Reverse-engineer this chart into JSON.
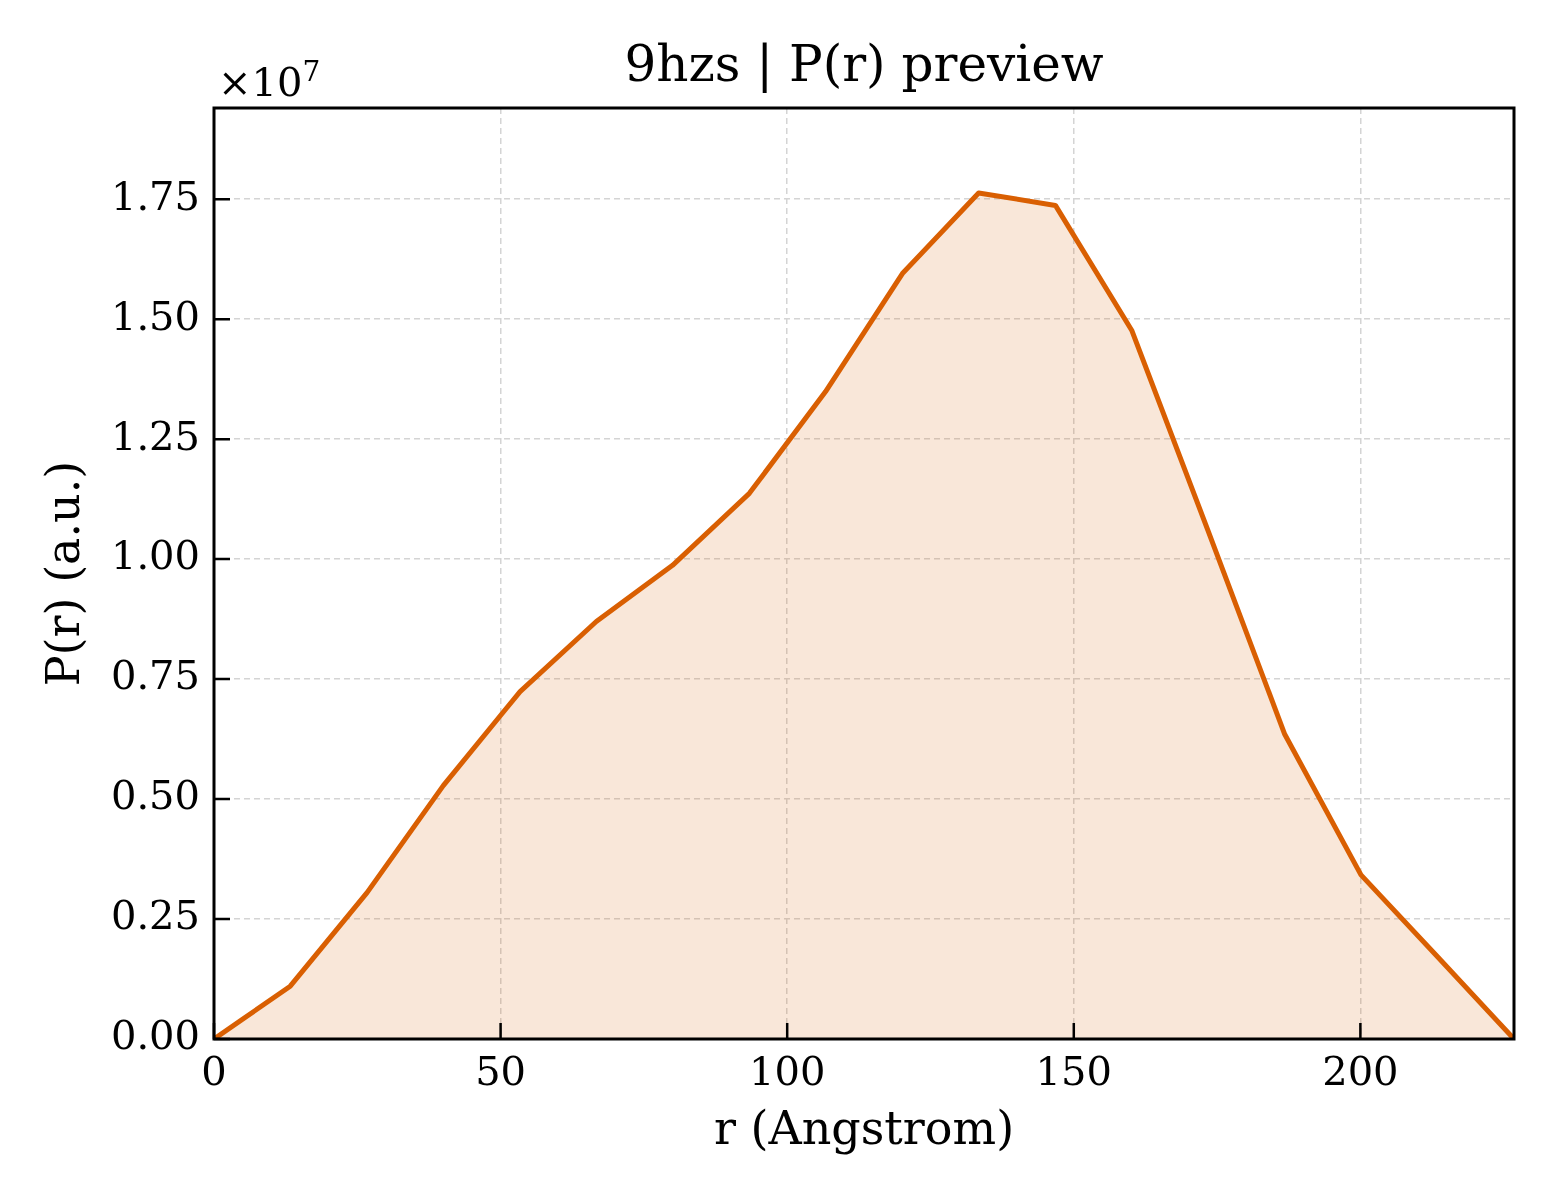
{
  "chart_data": {
    "type": "area",
    "title": "9hzs | P(r) preview",
    "xlabel": "r (Angstrom)",
    "ylabel": "P(r) (a.u.)",
    "annotations": [
      "×10$^{7}$"
    ],
    "x": [
      0,
      13.3,
      26.7,
      40.0,
      53.4,
      66.7,
      80.0,
      93.4,
      106.7,
      120.1,
      133.4,
      146.8,
      160.1,
      173.4,
      186.8,
      200.1,
      213.5,
      226.8
    ],
    "values": [
      0,
      0.11,
      0.305,
      0.528,
      0.724,
      0.87,
      0.987,
      1.137,
      1.349,
      1.595,
      1.763,
      1.737,
      1.477,
      1.06,
      0.635,
      0.342,
      0.171,
      0
    ],
    "color": "#d95f02",
    "xlim": [
      0,
      226.8
    ],
    "ylim": [
      0,
      1.94
    ],
    "xticks": [
      0,
      50,
      100,
      150,
      200
    ],
    "yticks": [
      {
        "value": 0,
        "label": "0.00"
      },
      0.25,
      {
        "value": 0.5,
        "label": "0.50"
      },
      0.75,
      {
        "value": 1,
        "label": "1.00"
      },
      1.25,
      {
        "value": 1.5,
        "label": "1.50"
      },
      1.75
    ],
    "grid": true
  }
}
